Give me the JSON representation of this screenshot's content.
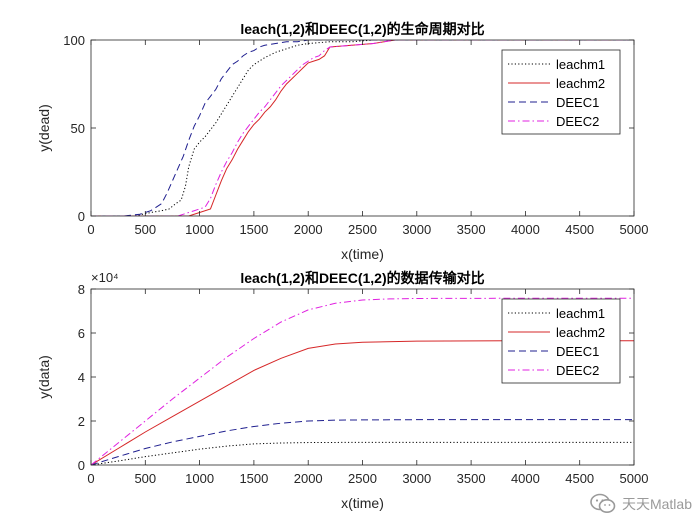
{
  "chart_data": [
    {
      "type": "line",
      "title": "leach(1,2)和DEEC(1,2)的生命周期对比",
      "xlabel": "x(time)",
      "ylabel": "y(dead)",
      "xlim": [
        0,
        5000
      ],
      "ylim": [
        0,
        100
      ],
      "xticks": [
        0,
        500,
        1000,
        1500,
        2000,
        2500,
        3000,
        3500,
        4000,
        4500,
        5000
      ],
      "yticks": [
        0,
        50,
        100
      ],
      "legend_position": "top-right",
      "series": [
        {
          "name": "leachm1",
          "color": "#000000",
          "style": "dotted",
          "x": [
            0,
            400,
            550,
            650,
            720,
            780,
            830,
            870,
            900,
            950,
            1000,
            1050,
            1100,
            1150,
            1200,
            1250,
            1300,
            1350,
            1400,
            1450,
            1500,
            1550,
            1600,
            1700,
            1800,
            1900,
            2000,
            2200,
            2400,
            2600,
            5000
          ],
          "y": [
            0,
            0,
            2,
            3,
            4,
            7,
            9,
            17,
            28,
            38,
            42,
            45,
            49,
            53,
            58,
            63,
            68,
            73,
            78,
            83,
            86,
            88,
            90,
            93,
            95,
            97,
            98,
            99,
            99,
            100,
            100
          ]
        },
        {
          "name": "leachm2",
          "color": "#d62728",
          "style": "solid",
          "x": [
            0,
            900,
            1000,
            1100,
            1150,
            1200,
            1250,
            1300,
            1350,
            1400,
            1450,
            1500,
            1550,
            1600,
            1650,
            1700,
            1750,
            1800,
            1850,
            1900,
            1950,
            2000,
            2050,
            2100,
            2150,
            2200,
            2400,
            2600,
            2800,
            5000
          ],
          "y": [
            0,
            0,
            2,
            4,
            12,
            20,
            27,
            32,
            38,
            43,
            48,
            52,
            55,
            59,
            62,
            66,
            71,
            75,
            78,
            81,
            84,
            87,
            88,
            89,
            91,
            96,
            97,
            98,
            100,
            100
          ]
        },
        {
          "name": "DEEC1",
          "color": "#1f1f8f",
          "style": "dashed",
          "x": [
            0,
            300,
            450,
            550,
            650,
            700,
            750,
            800,
            850,
            900,
            950,
            1000,
            1050,
            1100,
            1150,
            1200,
            1250,
            1300,
            1350,
            1400,
            1450,
            1500,
            1550,
            1600,
            1700,
            1800,
            1900,
            2000,
            2200,
            2500,
            5000
          ],
          "y": [
            0,
            0,
            1,
            3,
            7,
            13,
            20,
            27,
            34,
            43,
            51,
            57,
            64,
            68,
            72,
            78,
            82,
            86,
            88,
            91,
            93,
            94,
            96,
            97,
            98,
            99,
            99,
            100,
            100,
            100,
            100
          ]
        },
        {
          "name": "DEEC2",
          "color": "#e020e0",
          "style": "dashdot",
          "x": [
            0,
            800,
            950,
            1050,
            1100,
            1150,
            1200,
            1250,
            1300,
            1350,
            1400,
            1450,
            1500,
            1550,
            1600,
            1650,
            1700,
            1750,
            1800,
            1850,
            1900,
            1950,
            2000,
            2050,
            2100,
            2150,
            2200,
            2400,
            2600,
            2800,
            5000
          ],
          "y": [
            0,
            0,
            3,
            5,
            10,
            18,
            25,
            31,
            36,
            42,
            47,
            51,
            55,
            59,
            62,
            66,
            70,
            74,
            77,
            80,
            83,
            86,
            88,
            90,
            91,
            94,
            96,
            97,
            98,
            100,
            100
          ]
        }
      ]
    },
    {
      "type": "line",
      "title": "leach(1,2)和DEEC(1,2)的数据传输对比",
      "xlabel": "x(time)",
      "ylabel": "y(data)",
      "xlim": [
        0,
        5000
      ],
      "ylim": [
        0,
        8
      ],
      "yscale_label": "×10⁴",
      "xticks": [
        0,
        500,
        1000,
        1500,
        2000,
        2500,
        3000,
        3500,
        4000,
        4500,
        5000
      ],
      "yticks": [
        0,
        2,
        4,
        6,
        8
      ],
      "legend_position": "top-right",
      "series": [
        {
          "name": "leachm1",
          "color": "#000000",
          "style": "dotted",
          "x": [
            0,
            250,
            500,
            750,
            1000,
            1250,
            1500,
            1750,
            2000,
            2500,
            3000,
            4000,
            5000
          ],
          "y": [
            0,
            0.18,
            0.38,
            0.55,
            0.72,
            0.86,
            0.96,
            1.0,
            1.02,
            1.03,
            1.03,
            1.03,
            1.03
          ]
        },
        {
          "name": "leachm2",
          "color": "#d62728",
          "style": "solid",
          "x": [
            0,
            250,
            500,
            750,
            1000,
            1250,
            1500,
            1750,
            2000,
            2250,
            2500,
            3000,
            4000,
            5000
          ],
          "y": [
            0,
            0.75,
            1.5,
            2.2,
            2.9,
            3.6,
            4.3,
            4.85,
            5.3,
            5.5,
            5.58,
            5.63,
            5.65,
            5.65
          ]
        },
        {
          "name": "DEEC1",
          "color": "#1f1f8f",
          "style": "dashed",
          "x": [
            0,
            250,
            500,
            750,
            1000,
            1250,
            1500,
            1750,
            2000,
            2250,
            2500,
            3000,
            4000,
            5000
          ],
          "y": [
            0,
            0.38,
            0.75,
            1.05,
            1.3,
            1.55,
            1.75,
            1.9,
            2.0,
            2.04,
            2.05,
            2.06,
            2.06,
            2.06
          ]
        },
        {
          "name": "DEEC2",
          "color": "#e020e0",
          "style": "dashdot",
          "x": [
            0,
            250,
            500,
            750,
            1000,
            1250,
            1500,
            1750,
            2000,
            2250,
            2500,
            2750,
            3000,
            4000,
            5000
          ],
          "y": [
            0,
            1.0,
            2.0,
            3.0,
            3.95,
            4.9,
            5.75,
            6.5,
            7.05,
            7.35,
            7.5,
            7.55,
            7.57,
            7.58,
            7.58
          ]
        }
      ]
    }
  ],
  "watermark": {
    "text": "天天Matlab",
    "icon": "wechat-icon"
  }
}
